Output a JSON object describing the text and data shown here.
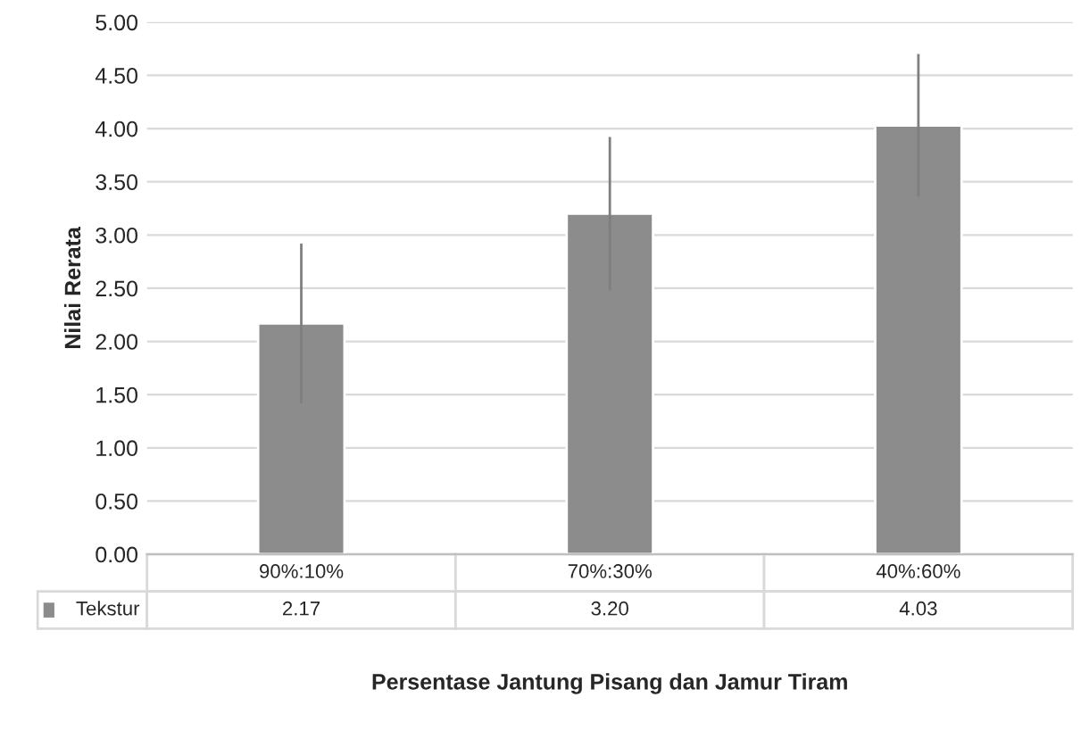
{
  "chart_data": {
    "type": "bar",
    "xlabel": "Persentase Jantung Pisang dan Jamur Tiram",
    "ylabel": "Nilai Rerata",
    "categories": [
      "90%:10%",
      "70%:30%",
      "40%:60%"
    ],
    "series": [
      {
        "name": "Tekstur",
        "color": "#8c8c8c",
        "values": [
          2.17,
          3.2,
          4.03
        ],
        "value_labels": [
          "2.17",
          "3.20",
          "4.03"
        ],
        "errors": [
          0.75,
          0.72,
          0.67
        ]
      }
    ],
    "ylim": [
      0,
      5
    ],
    "yticks": [
      {
        "value": 0,
        "label": "0.00"
      },
      {
        "value": 0.5,
        "label": "0.50"
      },
      {
        "value": 1,
        "label": "1.00"
      },
      {
        "value": 1.5,
        "label": "1.50"
      },
      {
        "value": 2,
        "label": "2.00"
      },
      {
        "value": 2.5,
        "label": "2.50"
      },
      {
        "value": 3,
        "label": "3.00"
      },
      {
        "value": 3.5,
        "label": "3.50"
      },
      {
        "value": 4,
        "label": "4.00"
      },
      {
        "value": 4.5,
        "label": "4.50"
      },
      {
        "value": 5,
        "label": "5.00"
      }
    ],
    "grid": "y",
    "legend": "bottom"
  }
}
